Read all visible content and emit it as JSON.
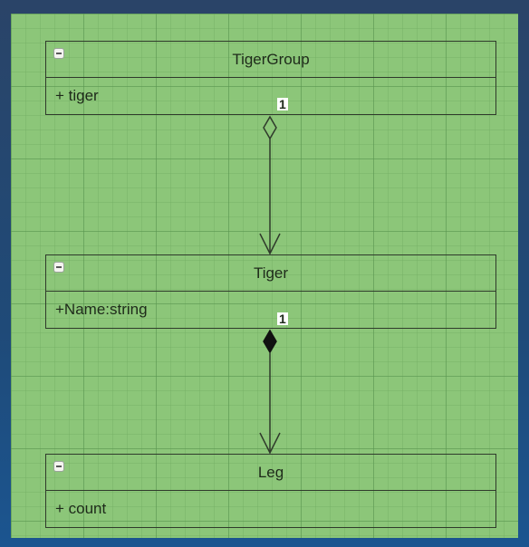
{
  "diagram": {
    "classes": [
      {
        "id": "tigergroup",
        "name": "TigerGroup",
        "attributes": [
          "+ tiger"
        ]
      },
      {
        "id": "tiger",
        "name": "Tiger",
        "attributes": [
          "+Name:string"
        ]
      },
      {
        "id": "leg",
        "name": "Leg",
        "attributes": [
          "+ count"
        ]
      }
    ],
    "relations": [
      {
        "from": "TigerGroup",
        "to": "Tiger",
        "kind": "aggregation",
        "multiplicity": "1"
      },
      {
        "from": "Tiger",
        "to": "Leg",
        "kind": "composition",
        "multiplicity": "1"
      }
    ],
    "colors": {
      "canvas": "#8cc679",
      "grid": "#5a9650",
      "line": "#2f3a2b",
      "frame": "#1f4a78"
    }
  }
}
